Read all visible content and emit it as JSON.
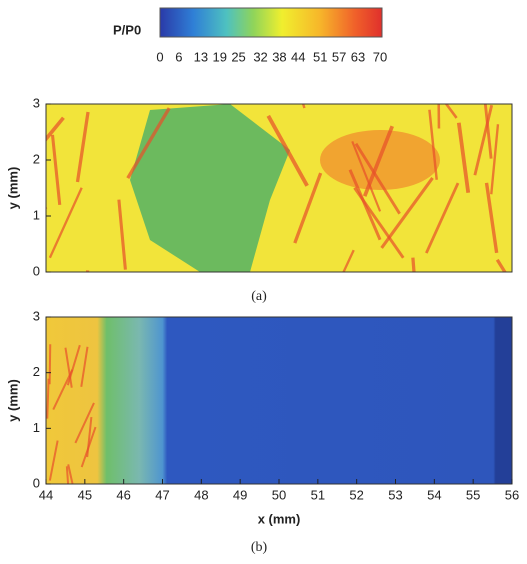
{
  "colorbar": {
    "label": "P/P0",
    "lim": [
      0,
      70
    ],
    "ticks": [
      0,
      6,
      13,
      19,
      25,
      32,
      38,
      44,
      51,
      57,
      63,
      70
    ]
  },
  "chart_data": [
    {
      "type": "heatmap",
      "ylabel": "y (mm)",
      "caption": "(a)",
      "xlim": [
        44,
        56
      ],
      "ylim": [
        0,
        3
      ],
      "yticks": [
        0,
        1,
        2,
        3
      ]
    },
    {
      "type": "heatmap",
      "ylabel": "y (mm)",
      "xlabel": "x (mm)",
      "caption": "(b)",
      "xlim": [
        44,
        56
      ],
      "ylim": [
        0,
        3
      ],
      "yticks": [
        0,
        1,
        2,
        3
      ],
      "xticks": [
        44,
        45,
        46,
        47,
        48,
        49,
        50,
        51,
        52,
        53,
        54,
        55,
        56
      ]
    }
  ]
}
